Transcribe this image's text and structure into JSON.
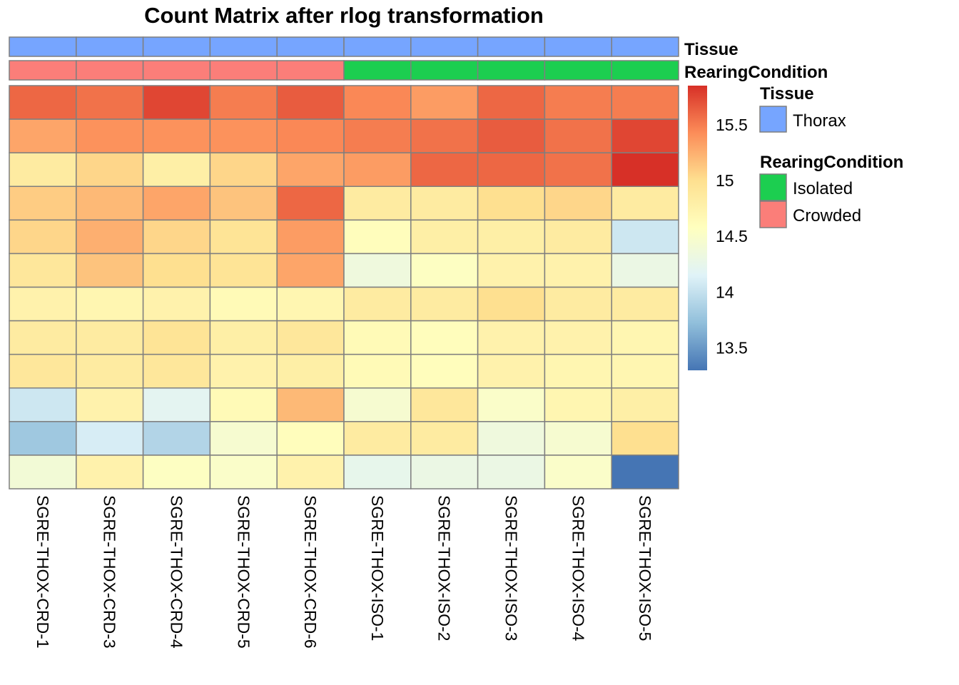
{
  "chart_data": {
    "type": "heatmap",
    "title": "Count Matrix after rlog transformation",
    "columns": [
      "SGRE-THOX-CRD-1",
      "SGRE-THOX-CRD-3",
      "SGRE-THOX-CRD-4",
      "SGRE-THOX-CRD-5",
      "SGRE-THOX-CRD-6",
      "SGRE-THOX-ISO-1",
      "SGRE-THOX-ISO-2",
      "SGRE-THOX-ISO-3",
      "SGRE-THOX-ISO-4",
      "SGRE-THOX-ISO-5"
    ],
    "values": [
      [
        15.6,
        15.55,
        15.75,
        15.5,
        15.65,
        15.45,
        15.35,
        15.6,
        15.5,
        15.5
      ],
      [
        15.3,
        15.4,
        15.4,
        15.4,
        15.45,
        15.5,
        15.55,
        15.65,
        15.55,
        15.75
      ],
      [
        14.85,
        15.05,
        14.8,
        15.05,
        15.3,
        15.35,
        15.6,
        15.6,
        15.55,
        15.85
      ],
      [
        15.1,
        15.2,
        15.3,
        15.15,
        15.6,
        14.85,
        14.85,
        15.0,
        15.05,
        14.85
      ],
      [
        15.05,
        15.25,
        15.05,
        14.95,
        15.35,
        14.6,
        14.8,
        14.8,
        14.85,
        14.05
      ],
      [
        14.9,
        15.15,
        15.0,
        14.95,
        15.3,
        14.35,
        14.55,
        14.75,
        14.75,
        14.3
      ],
      [
        14.75,
        14.7,
        14.75,
        14.65,
        14.7,
        14.85,
        14.85,
        15.0,
        14.85,
        14.85
      ],
      [
        14.85,
        14.85,
        14.95,
        14.8,
        14.9,
        14.65,
        14.6,
        14.75,
        14.75,
        14.7
      ],
      [
        14.9,
        14.85,
        14.9,
        14.75,
        14.8,
        14.65,
        14.6,
        14.75,
        14.7,
        14.7
      ],
      [
        14.05,
        14.75,
        14.2,
        14.65,
        15.2,
        14.45,
        14.9,
        14.5,
        14.7,
        14.8
      ],
      [
        13.8,
        14.1,
        13.9,
        14.45,
        14.6,
        14.85,
        14.85,
        14.35,
        14.45,
        15.0
      ],
      [
        14.4,
        14.75,
        14.55,
        14.5,
        14.75,
        14.25,
        14.3,
        14.3,
        14.5,
        13.3
      ]
    ],
    "color_scale": {
      "min": 13.3,
      "max": 15.85,
      "stops": [
        "#4575B4",
        "#91BFDB",
        "#E0F3F8",
        "#FFFFBF",
        "#FEE090",
        "#FC8D59",
        "#D73027"
      ],
      "ticks": [
        "13.5",
        "14",
        "14.5",
        "15",
        "15.5"
      ]
    },
    "annotations": [
      {
        "name": "Tissue",
        "values": [
          "Thorax",
          "Thorax",
          "Thorax",
          "Thorax",
          "Thorax",
          "Thorax",
          "Thorax",
          "Thorax",
          "Thorax",
          "Thorax"
        ]
      },
      {
        "name": "RearingCondition",
        "values": [
          "Crowded",
          "Crowded",
          "Crowded",
          "Crowded",
          "Crowded",
          "Isolated",
          "Isolated",
          "Isolated",
          "Isolated",
          "Isolated"
        ]
      }
    ],
    "legend": {
      "placement": "right",
      "groups": [
        {
          "title": "Tissue",
          "items": [
            {
              "label": "Thorax",
              "color": "#76A5FF"
            }
          ]
        },
        {
          "title": "RearingCondition",
          "items": [
            {
              "label": "Isolated",
              "color": "#1CCE50"
            },
            {
              "label": "Crowded",
              "color": "#FB7E79"
            }
          ]
        }
      ]
    },
    "cell_border_color": "#7F7F7F"
  }
}
